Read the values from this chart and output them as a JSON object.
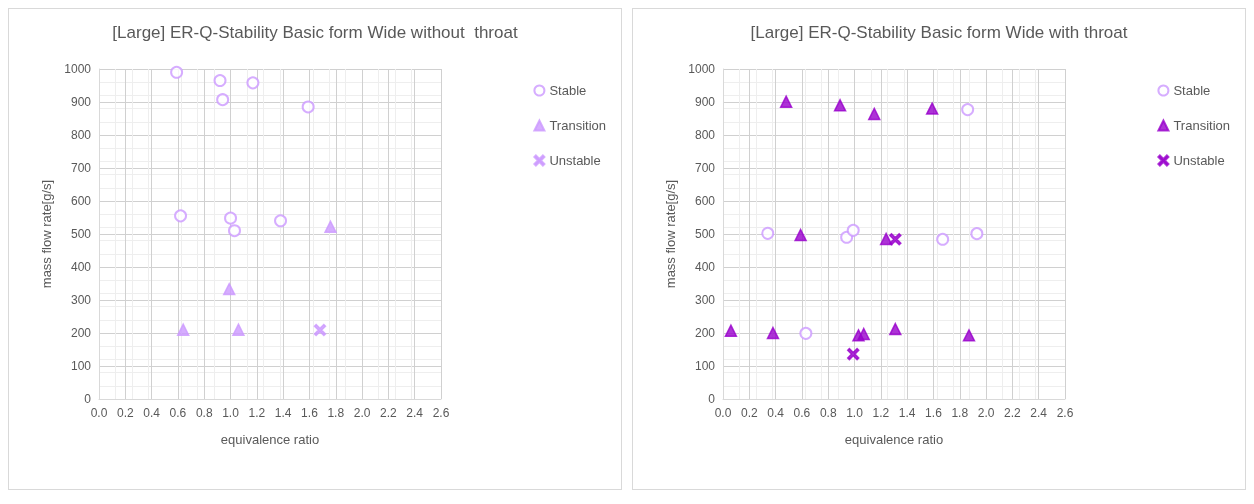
{
  "chart_data": [
    {
      "type": "scatter",
      "title": "[Large] ER-Q-Stability Basic form Wide without  throat",
      "xlabel": "equivalence ratio",
      "ylabel": "mass flow rate[g/s]",
      "xlim": [
        0,
        2.6
      ],
      "xticks": [
        {
          "value": 0,
          "label": "0.0"
        },
        0.2,
        0.4,
        0.6,
        0.8,
        {
          "value": 1,
          "label": "1.0"
        },
        1.2,
        1.4,
        1.6,
        1.8,
        {
          "value": 2,
          "label": "2.0"
        },
        2.2,
        2.4,
        2.6
      ],
      "ylim": [
        0,
        1000
      ],
      "yticks": [
        0,
        100,
        200,
        300,
        400,
        500,
        600,
        700,
        800,
        900,
        1000
      ],
      "grid": true,
      "legend": "right",
      "series": [
        {
          "name": "Stable",
          "color": "#cc99ff",
          "marker": "circle",
          "x": [
            0.59,
            0.92,
            1.17,
            0.94,
            1.59,
            0.62,
            1.0,
            1.03,
            1.38
          ],
          "values": [
            990,
            965,
            958,
            907,
            885,
            555,
            548,
            510,
            540
          ]
        },
        {
          "name": "Transition",
          "color": "#cc99ff",
          "marker": "triangle",
          "x": [
            1.76,
            0.99,
            0.64,
            1.06
          ],
          "values": [
            522,
            333,
            210,
            210
          ]
        },
        {
          "name": "Unstable",
          "color": "#cc99ff",
          "marker": "cross",
          "x": [
            1.68
          ],
          "values": [
            209
          ]
        }
      ]
    },
    {
      "type": "scatter",
      "title": "[Large] ER-Q-Stability Basic form Wide with throat",
      "xlabel": "equivalence ratio",
      "ylabel": "mass flow rate[g/s]",
      "xlim": [
        0,
        2.6
      ],
      "xticks": [
        {
          "value": 0,
          "label": "0.0"
        },
        0.2,
        0.4,
        0.6,
        0.8,
        {
          "value": 1,
          "label": "1.0"
        },
        1.2,
        1.4,
        1.6,
        1.8,
        {
          "value": 2,
          "label": "2.0"
        },
        2.2,
        2.4,
        2.6
      ],
      "ylim": [
        0,
        1000
      ],
      "yticks": [
        0,
        100,
        200,
        300,
        400,
        500,
        600,
        700,
        800,
        900,
        1000
      ],
      "grid": true,
      "legend": "right",
      "series": [
        {
          "name": "Stable",
          "color": "#cc99ff",
          "marker": "circle",
          "x": [
            0.34,
            0.94,
            0.99,
            0.63,
            1.67,
            1.93,
            1.86
          ],
          "values": [
            502,
            490,
            511,
            199,
            484,
            501,
            877
          ]
        },
        {
          "name": "Transition",
          "color": "#9900cc",
          "marker": "triangle",
          "x": [
            0.48,
            0.89,
            1.15,
            1.59,
            0.59,
            1.24,
            0.06,
            0.38,
            1.03,
            1.07,
            1.31,
            1.87
          ],
          "values": [
            901,
            890,
            864,
            880,
            497,
            485,
            207,
            200,
            193,
            197,
            212,
            193
          ]
        },
        {
          "name": "Unstable",
          "color": "#9900cc",
          "marker": "cross",
          "x": [
            0.99,
            1.31
          ],
          "values": [
            136,
            484
          ]
        }
      ]
    }
  ]
}
